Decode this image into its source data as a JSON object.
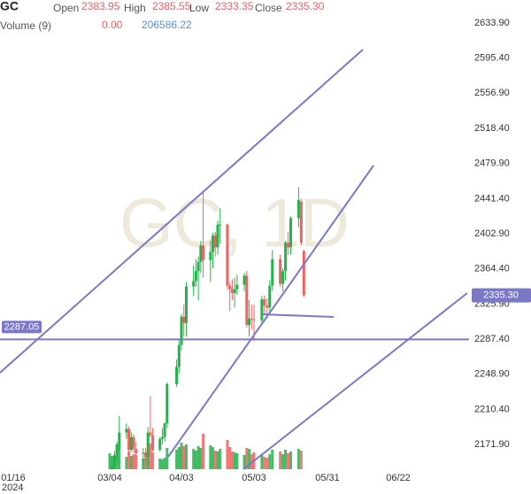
{
  "chart_data": {
    "type": "candlestick",
    "header": {
      "symbol": "GC",
      "open": {
        "label": "Open",
        "value": "2383.95"
      },
      "high": {
        "label": "High",
        "value": "2385.55"
      },
      "low": {
        "label": "Low",
        "value": "2333.35"
      },
      "close": {
        "label": "Close",
        "value": "2335.30"
      },
      "volume": {
        "label": "Volume (9)",
        "value": "0.00",
        "average": "206586.22"
      }
    },
    "watermark": "GC, 1D",
    "up_color": "#22b34c",
    "down_color": "#f0625f",
    "line_color": "#7b78c8",
    "x": [
      "2024-03-04",
      "2024-03-05",
      "2024-03-06",
      "2024-03-07",
      "2024-03-08",
      "2024-03-11",
      "2024-03-12",
      "2024-03-13",
      "2024-03-14",
      "2024-03-15",
      "2024-03-18",
      "2024-03-19",
      "2024-03-20",
      "2024-03-21",
      "2024-03-22",
      "2024-03-25",
      "2024-03-26",
      "2024-03-27",
      "2024-03-28",
      "2024-04-01",
      "2024-04-02",
      "2024-04-03",
      "2024-04-04",
      "2024-04-05",
      "2024-04-08",
      "2024-04-09",
      "2024-04-10",
      "2024-04-11",
      "2024-04-12",
      "2024-04-15",
      "2024-04-16",
      "2024-04-17",
      "2024-04-18",
      "2024-04-19",
      "2024-04-22",
      "2024-04-23",
      "2024-04-24",
      "2024-04-25",
      "2024-04-26",
      "2024-04-29",
      "2024-04-30",
      "2024-05-01",
      "2024-05-02",
      "2024-05-03",
      "2024-05-06",
      "2024-05-07",
      "2024-05-08",
      "2024-05-09",
      "2024-05-10",
      "2024-05-13",
      "2024-05-14",
      "2024-05-15",
      "2024-05-16",
      "2024-05-17",
      "2024-05-20",
      "2024-05-21",
      "2024-05-22"
    ],
    "open": [
      2105,
      2138,
      2148,
      2160,
      2172,
      2185,
      2189,
      2166,
      2180,
      2167,
      2162,
      2163,
      2158,
      2185,
      2182,
      2166,
      2178,
      2180,
      2195,
      2238,
      2257,
      2281,
      2312,
      2305,
      2345,
      2351,
      2362,
      2372,
      2390,
      2374,
      2383,
      2401,
      2388,
      2413,
      2413,
      2346,
      2342,
      2338,
      2342,
      2347,
      2357,
      2303,
      2310,
      2309,
      2308,
      2331,
      2324,
      2322,
      2346,
      2375,
      2348,
      2362,
      2393,
      2388,
      2420,
      2438,
      2383.95
    ],
    "high": [
      2141,
      2152,
      2165,
      2175,
      2203,
      2195,
      2192,
      2185,
      2183,
      2175,
      2168,
      2168,
      2191,
      2225,
      2190,
      2180,
      2190,
      2196,
      2240,
      2265,
      2286,
      2315,
      2325,
      2350,
      2368,
      2375,
      2378,
      2395,
      2448,
      2395,
      2404,
      2405,
      2417,
      2431,
      2414,
      2350,
      2353,
      2355,
      2358,
      2360,
      2362,
      2330,
      2325,
      2325,
      2335,
      2335,
      2332,
      2352,
      2385,
      2380,
      2365,
      2395,
      2405,
      2422,
      2454,
      2441,
      2385.55
    ],
    "low": [
      2100,
      2130,
      2145,
      2155,
      2165,
      2178,
      2160,
      2164,
      2163,
      2160,
      2150,
      2152,
      2150,
      2180,
      2164,
      2164,
      2172,
      2175,
      2190,
      2235,
      2250,
      2275,
      2290,
      2290,
      2335,
      2345,
      2330,
      2360,
      2355,
      2350,
      2365,
      2378,
      2380,
      2392,
      2342,
      2318,
      2330,
      2322,
      2336,
      2340,
      2300,
      2290,
      2298,
      2285,
      2303,
      2315,
      2310,
      2318,
      2340,
      2345,
      2340,
      2352,
      2380,
      2380,
      2410,
      2390,
      2333.35
    ],
    "close": [
      2138,
      2148,
      2160,
      2172,
      2185,
      2189,
      2166,
      2180,
      2167,
      2162,
      2163,
      2158,
      2185,
      2182,
      2166,
      2178,
      2180,
      2195,
      2238,
      2257,
      2281,
      2312,
      2305,
      2345,
      2351,
      2362,
      2372,
      2390,
      2374,
      2383,
      2401,
      2388,
      2413,
      2413,
      2346,
      2342,
      2338,
      2342,
      2347,
      2357,
      2303,
      2310,
      2309,
      2308,
      2331,
      2324,
      2322,
      2346,
      2375,
      2348,
      2362,
      2393,
      2388,
      2420,
      2440,
      2393,
      2335.3
    ],
    "volume": [
      180000,
      150000,
      160000,
      170000,
      320000,
      140000,
      200000,
      150000,
      170000,
      160000,
      120000,
      130000,
      210000,
      290000,
      190000,
      120000,
      110000,
      130000,
      240000,
      220000,
      250000,
      300000,
      260000,
      280000,
      230000,
      210000,
      260000,
      240000,
      400000,
      270000,
      250000,
      210000,
      200000,
      230000,
      330000,
      250000,
      200000,
      190000,
      180000,
      160000,
      240000,
      230000,
      170000,
      190000,
      160000,
      140000,
      130000,
      170000,
      220000,
      200000,
      170000,
      220000,
      180000,
      200000,
      230000,
      210000,
      0
    ],
    "xticks": [
      {
        "value": "2024-01-16",
        "label": "01/16"
      },
      {
        "value": "2024-03-04",
        "label": "03/04"
      },
      {
        "value": "2024-04-03",
        "label": "04/03"
      },
      {
        "value": "2024-05-03",
        "label": "05/03"
      },
      {
        "value": "2024-05-31",
        "label": "05/31"
      },
      {
        "value": "2024-06-22",
        "label": "06/22"
      }
    ],
    "year_label": "2024",
    "ylim": [
      2144.8,
      2659.1
    ],
    "yticks": [
      {
        "value": 2633.9,
        "label": "2633.90"
      },
      {
        "value": 2595.4,
        "label": "2595.40"
      },
      {
        "value": 2556.9,
        "label": "2556.90"
      },
      {
        "value": 2518.4,
        "label": "2518.40"
      },
      {
        "value": 2479.9,
        "label": "2479.90"
      },
      {
        "value": 2441.4,
        "label": "2441.40"
      },
      {
        "value": 2402.9,
        "label": "2402.90"
      },
      {
        "value": 2364.4,
        "label": "2364.40"
      },
      {
        "value": 2325.9,
        "label": "2325.90"
      },
      {
        "value": 2287.4,
        "label": "2287.40"
      },
      {
        "value": 2248.9,
        "label": "2248.90"
      },
      {
        "value": 2210.4,
        "label": "2210.40"
      },
      {
        "value": 2171.9,
        "label": "2171.90"
      }
    ],
    "hline": {
      "value": 2287.05,
      "label": "2287.05"
    }
  }
}
